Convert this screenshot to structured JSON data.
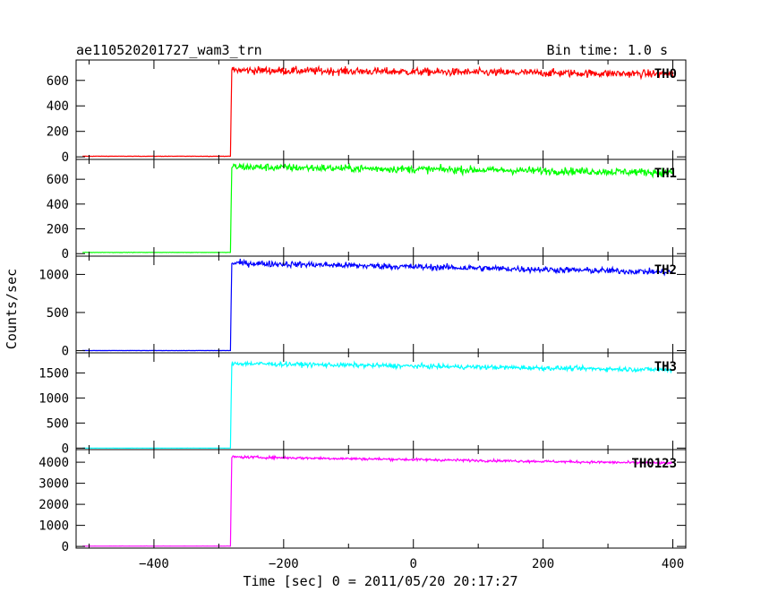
{
  "header": {
    "title": "ae110520201727_wam3_trn",
    "bin_time": "Bin time: 1.0 s"
  },
  "chart_data": {
    "type": "line",
    "title": "ae110520201727_wam3_trn",
    "xlabel": "Time [sec] 0 = 2011/05/20 20:17:27",
    "ylabel": "Counts/sec",
    "xlim": [
      -520,
      420
    ],
    "x_ticks": [
      -400,
      -200,
      0,
      200,
      400
    ],
    "x_tick_labels": [
      "−400",
      "−200",
      "0",
      "200",
      "400"
    ],
    "onset_time": -282,
    "step": 1.0,
    "series": [
      {
        "name": "TH0",
        "color": "#ff0000",
        "ylim": [
          -20,
          760
        ],
        "y_ticks": [
          0,
          200,
          400,
          600
        ],
        "y_tick_labels": [
          "0",
          "200",
          "400",
          "600"
        ],
        "pre_level": 5,
        "post_start": 680,
        "post_end": 650,
        "noise": 30
      },
      {
        "name": "TH1",
        "color": "#00ff00",
        "ylim": [
          -20,
          760
        ],
        "y_ticks": [
          0,
          200,
          400,
          600
        ],
        "y_tick_labels": [
          "0",
          "200",
          "400",
          "600"
        ],
        "pre_level": 10,
        "post_start": 700,
        "post_end": 655,
        "noise": 30
      },
      {
        "name": "TH2",
        "color": "#0000ff",
        "ylim": [
          -30,
          1240
        ],
        "y_ticks": [
          0,
          500,
          1000
        ],
        "y_tick_labels": [
          "0",
          "500",
          "1000"
        ],
        "pre_level": 0,
        "post_start": 1150,
        "post_end": 1030,
        "noise": 40
      },
      {
        "name": "TH3",
        "color": "#00ffff",
        "ylim": [
          -30,
          1900
        ],
        "y_ticks": [
          0,
          500,
          1000,
          1500
        ],
        "y_tick_labels": [
          "0",
          "500",
          "1000",
          "1500"
        ],
        "pre_level": 0,
        "post_start": 1690,
        "post_end": 1560,
        "noise": 45
      },
      {
        "name": "TH0123",
        "color": "#ff00ff",
        "ylim": [
          -80,
          4600
        ],
        "y_ticks": [
          0,
          1000,
          2000,
          3000,
          4000
        ],
        "y_tick_labels": [
          "0",
          "1000",
          "2000",
          "3000",
          "4000"
        ],
        "pre_level": 15,
        "post_start": 4250,
        "post_end": 3950,
        "noise": 60
      }
    ]
  }
}
